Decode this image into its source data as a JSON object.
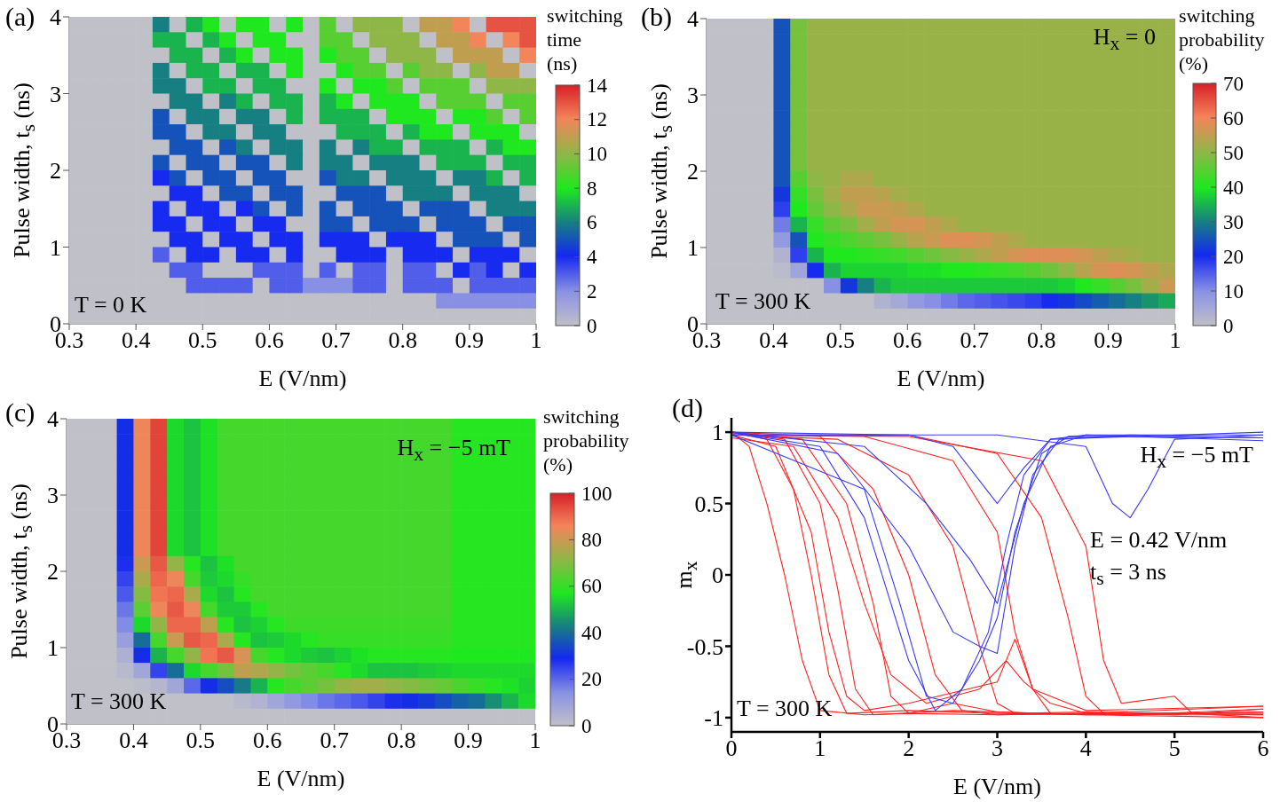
{
  "chart_data": [
    {
      "type": "heatmap",
      "title": "(a)",
      "xlabel": "E (V/nm)",
      "ylabel": "Pulse width, t$_{s}$ (ns)",
      "clabel": "switching time (ns)",
      "annotations": [
        "T = 0 K"
      ],
      "x": [
        0.3125,
        0.3375,
        0.3625,
        0.3875,
        0.4125,
        0.4375,
        0.4625,
        0.4875,
        0.5125,
        0.5375,
        0.5625,
        0.5875,
        0.6125,
        0.6375,
        0.6625,
        0.6875,
        0.7125,
        0.7375,
        0.7625,
        0.7875,
        0.8125,
        0.8375,
        0.8625,
        0.8875,
        0.9125,
        0.9375,
        0.9625,
        0.9875
      ],
      "xlim": [
        0.3,
        1
      ],
      "xticks": [
        0.3,
        0.4,
        0.5,
        0.6,
        0.7,
        0.8,
        0.9,
        1
      ],
      "ylim": [
        0,
        4
      ],
      "yticks": [
        0,
        1,
        2,
        3,
        4
      ],
      "clim": [
        0,
        14
      ],
      "cticks": [
        0,
        2,
        4,
        6,
        8,
        10,
        12,
        14
      ],
      "cells": [
        [
          0,
          0,
          0,
          0,
          0,
          6,
          0,
          7,
          8,
          0,
          8,
          8,
          0,
          8,
          0,
          9,
          0,
          10,
          10,
          10,
          0,
          11,
          11,
          12,
          0,
          13,
          13,
          13
        ],
        [
          0,
          0,
          0,
          0,
          0,
          7,
          7,
          0,
          7,
          8,
          0,
          8,
          8,
          0,
          0,
          9,
          9,
          0,
          10,
          10,
          10,
          0,
          11,
          11,
          12,
          0,
          12,
          13
        ],
        [
          0,
          0,
          0,
          0,
          0,
          0,
          7,
          7,
          0,
          7,
          8,
          0,
          8,
          8,
          0,
          8,
          9,
          9,
          0,
          10,
          10,
          10,
          0,
          11,
          11,
          11,
          0,
          12
        ],
        [
          0,
          0,
          0,
          0,
          0,
          6,
          0,
          7,
          7,
          0,
          7,
          7,
          0,
          8,
          0,
          0,
          8,
          9,
          9,
          0,
          9,
          10,
          10,
          0,
          10,
          11,
          11,
          0
        ],
        [
          0,
          0,
          0,
          0,
          0,
          6,
          6,
          0,
          7,
          7,
          0,
          7,
          7,
          0,
          0,
          8,
          0,
          8,
          8,
          9,
          0,
          9,
          9,
          9,
          0,
          10,
          10,
          10
        ],
        [
          0,
          0,
          0,
          0,
          0,
          0,
          6,
          6,
          0,
          6,
          7,
          0,
          7,
          7,
          0,
          7,
          8,
          0,
          8,
          8,
          8,
          0,
          9,
          9,
          9,
          0,
          9,
          9
        ],
        [
          0,
          0,
          0,
          0,
          0,
          5,
          0,
          6,
          6,
          0,
          6,
          6,
          0,
          7,
          0,
          7,
          7,
          7,
          0,
          8,
          8,
          8,
          0,
          8,
          8,
          9,
          0,
          9
        ],
        [
          0,
          0,
          0,
          0,
          0,
          5,
          5,
          0,
          6,
          6,
          0,
          6,
          6,
          0,
          0,
          0,
          7,
          7,
          7,
          0,
          7,
          8,
          8,
          0,
          8,
          8,
          8,
          0
        ],
        [
          0,
          0,
          0,
          0,
          0,
          0,
          5,
          5,
          0,
          5,
          6,
          0,
          6,
          6,
          0,
          6,
          0,
          6,
          7,
          7,
          0,
          7,
          7,
          7,
          0,
          7,
          8,
          8
        ],
        [
          0,
          0,
          0,
          0,
          0,
          5,
          0,
          5,
          5,
          0,
          5,
          5,
          0,
          6,
          0,
          6,
          6,
          0,
          6,
          6,
          6,
          0,
          7,
          7,
          7,
          0,
          7,
          7
        ],
        [
          0,
          0,
          0,
          0,
          0,
          4,
          5,
          0,
          5,
          5,
          0,
          5,
          5,
          0,
          0,
          5,
          6,
          6,
          0,
          6,
          6,
          6,
          0,
          6,
          6,
          7,
          0,
          7
        ],
        [
          0,
          0,
          0,
          0,
          0,
          0,
          4,
          4,
          0,
          5,
          5,
          0,
          5,
          5,
          0,
          0,
          5,
          5,
          5,
          0,
          6,
          6,
          6,
          0,
          6,
          6,
          6,
          0
        ],
        [
          0,
          0,
          0,
          0,
          0,
          4,
          0,
          4,
          4,
          0,
          4,
          5,
          0,
          5,
          0,
          5,
          0,
          5,
          5,
          5,
          0,
          5,
          5,
          5,
          0,
          6,
          6,
          6
        ],
        [
          0,
          0,
          0,
          0,
          0,
          4,
          4,
          0,
          4,
          4,
          0,
          4,
          4,
          0,
          0,
          5,
          5,
          0,
          5,
          5,
          5,
          0,
          5,
          5,
          5,
          0,
          5,
          5
        ],
        [
          0,
          0,
          0,
          0,
          0,
          0,
          4,
          4,
          0,
          4,
          4,
          0,
          4,
          4,
          0,
          4,
          4,
          4,
          0,
          4,
          4,
          4,
          0,
          5,
          5,
          5,
          0,
          5
        ],
        [
          0,
          0,
          0,
          0,
          0,
          3,
          0,
          4,
          4,
          0,
          4,
          4,
          0,
          4,
          0,
          0,
          4,
          4,
          4,
          0,
          4,
          4,
          4,
          0,
          4,
          4,
          4,
          0
        ],
        [
          0,
          0,
          0,
          0,
          0,
          0,
          3,
          3,
          0,
          0,
          0,
          3,
          3,
          3,
          0,
          3,
          0,
          3,
          3,
          0,
          3,
          3,
          0,
          4,
          3,
          4,
          0,
          4
        ],
        [
          0,
          0,
          0,
          0,
          0,
          0,
          0,
          3,
          3,
          3,
          3,
          0,
          3,
          3,
          2,
          2,
          2,
          3,
          3,
          0,
          3,
          3,
          3,
          0,
          3,
          3,
          3,
          3
        ],
        [
          0,
          0,
          0,
          0,
          0,
          0,
          0,
          0,
          0,
          0,
          0,
          0,
          0,
          0,
          0,
          0,
          0,
          0,
          0,
          0,
          0,
          0,
          2,
          2,
          2,
          2,
          2,
          2
        ],
        [
          0,
          0,
          0,
          0,
          0,
          0,
          0,
          0,
          0,
          0,
          0,
          0,
          0,
          0,
          0,
          0,
          0,
          0,
          0,
          0,
          0,
          0,
          0,
          0,
          0,
          0,
          0,
          0
        ]
      ]
    },
    {
      "type": "heatmap",
      "title": "(b)",
      "xlabel": "E (V/nm)",
      "ylabel": "Pulse width, t$_{s}$ (ns)",
      "clabel": "switching probability (%)",
      "annotations": [
        "H$_{x}$ = 0",
        "T = 300 K"
      ],
      "x": [
        0.3125,
        0.3375,
        0.3625,
        0.3875,
        0.4125,
        0.4375,
        0.4625,
        0.4875,
        0.5125,
        0.5375,
        0.5625,
        0.5875,
        0.6125,
        0.6375,
        0.6625,
        0.6875,
        0.7125,
        0.7375,
        0.7625,
        0.7875,
        0.8125,
        0.8375,
        0.8625,
        0.8875,
        0.9125,
        0.9375,
        0.9625,
        0.9875
      ],
      "xlim": [
        0.3,
        1
      ],
      "xticks": [
        0.3,
        0.4,
        0.5,
        0.6,
        0.7,
        0.8,
        0.9,
        1
      ],
      "ylim": [
        0,
        4
      ],
      "yticks": [
        0,
        1,
        2,
        3,
        4
      ],
      "clim": [
        0,
        70
      ],
      "cticks": [
        0,
        10,
        20,
        30,
        40,
        50,
        60,
        70
      ],
      "cells": [
        [
          0,
          0,
          0,
          0,
          25,
          48,
          51,
          51,
          51,
          51,
          51,
          51,
          51,
          51,
          51,
          51,
          51,
          51,
          51,
          51,
          51,
          51,
          51,
          51,
          51,
          51,
          51,
          51
        ],
        [
          0,
          0,
          0,
          0,
          25,
          48,
          51,
          51,
          51,
          51,
          51,
          51,
          51,
          51,
          51,
          51,
          51,
          51,
          51,
          51,
          51,
          51,
          51,
          51,
          51,
          51,
          51,
          51
        ],
        [
          0,
          0,
          0,
          0,
          25,
          48,
          51,
          51,
          51,
          51,
          51,
          51,
          51,
          51,
          51,
          51,
          51,
          51,
          51,
          51,
          51,
          51,
          51,
          51,
          51,
          51,
          51,
          51
        ],
        [
          0,
          0,
          0,
          0,
          25,
          48,
          51,
          51,
          51,
          51,
          51,
          51,
          51,
          51,
          51,
          51,
          51,
          51,
          51,
          51,
          51,
          51,
          51,
          51,
          51,
          51,
          51,
          51
        ],
        [
          0,
          0,
          0,
          0,
          25,
          48,
          51,
          51,
          51,
          51,
          51,
          51,
          51,
          51,
          51,
          51,
          51,
          51,
          51,
          51,
          51,
          51,
          51,
          51,
          51,
          51,
          51,
          51
        ],
        [
          0,
          0,
          0,
          0,
          25,
          48,
          51,
          51,
          51,
          51,
          51,
          51,
          51,
          51,
          51,
          51,
          51,
          51,
          51,
          51,
          51,
          51,
          51,
          51,
          51,
          51,
          51,
          51
        ],
        [
          0,
          0,
          0,
          0,
          25,
          48,
          51,
          51,
          51,
          51,
          51,
          51,
          51,
          51,
          51,
          51,
          51,
          51,
          51,
          51,
          51,
          51,
          51,
          51,
          51,
          51,
          51,
          51
        ],
        [
          0,
          0,
          0,
          0,
          25,
          48,
          51,
          51,
          51,
          51,
          51,
          51,
          51,
          51,
          51,
          51,
          51,
          51,
          51,
          51,
          51,
          51,
          51,
          51,
          51,
          51,
          51,
          51
        ],
        [
          0,
          0,
          0,
          0,
          25,
          48,
          51,
          51,
          51,
          51,
          51,
          51,
          51,
          51,
          51,
          51,
          51,
          51,
          51,
          51,
          51,
          51,
          51,
          51,
          51,
          51,
          51,
          51
        ],
        [
          0,
          0,
          0,
          0,
          25,
          48,
          51,
          51,
          51,
          51,
          51,
          51,
          51,
          51,
          51,
          51,
          51,
          51,
          51,
          51,
          51,
          51,
          51,
          51,
          51,
          51,
          51,
          51
        ],
        [
          0,
          0,
          0,
          0,
          25,
          45,
          50,
          51,
          53,
          53,
          51,
          51,
          51,
          51,
          51,
          51,
          51,
          51,
          51,
          51,
          51,
          51,
          51,
          51,
          51,
          51,
          51,
          51
        ],
        [
          0,
          0,
          0,
          0,
          22,
          42,
          48,
          52,
          55,
          55,
          54,
          52,
          51,
          51,
          51,
          51,
          51,
          51,
          51,
          51,
          51,
          51,
          51,
          51,
          51,
          51,
          51,
          51
        ],
        [
          0,
          0,
          0,
          0,
          18,
          40,
          46,
          50,
          53,
          56,
          56,
          55,
          53,
          51,
          51,
          51,
          51,
          51,
          51,
          51,
          51,
          51,
          51,
          51,
          51,
          51,
          51,
          51
        ],
        [
          0,
          0,
          0,
          0,
          12,
          35,
          42,
          46,
          48,
          52,
          55,
          57,
          57,
          55,
          53,
          51,
          51,
          51,
          51,
          51,
          51,
          51,
          51,
          51,
          51,
          51,
          51,
          51
        ],
        [
          0,
          0,
          0,
          0,
          8,
          25,
          40,
          42,
          44,
          46,
          48,
          51,
          54,
          56,
          58,
          58,
          57,
          55,
          53,
          51,
          51,
          51,
          51,
          51,
          51,
          51,
          51,
          51
        ],
        [
          0,
          0,
          0,
          0,
          3,
          18,
          35,
          40,
          40,
          41,
          42,
          43,
          45,
          47,
          49,
          51,
          53,
          55,
          57,
          58,
          58,
          58,
          57,
          55,
          53,
          52,
          51,
          51
        ],
        [
          0,
          0,
          0,
          0,
          1,
          6,
          20,
          35,
          38,
          38,
          38,
          38,
          39,
          39,
          40,
          40,
          41,
          42,
          43,
          45,
          47,
          50,
          54,
          57,
          58,
          57,
          55,
          53
        ],
        [
          0,
          0,
          0,
          0,
          0,
          0,
          0,
          10,
          22,
          30,
          35,
          37,
          37,
          37,
          37,
          37,
          37,
          37,
          37,
          37,
          37,
          38,
          40,
          42,
          45,
          48,
          52,
          56
        ],
        [
          0,
          0,
          0,
          0,
          0,
          0,
          0,
          0,
          0,
          0,
          3,
          5,
          8,
          10,
          12,
          14,
          15,
          16,
          17,
          18,
          20,
          22,
          24,
          26,
          28,
          30,
          32,
          34
        ],
        [
          0,
          0,
          0,
          0,
          0,
          0,
          0,
          0,
          0,
          0,
          0,
          0,
          0,
          0,
          0,
          0,
          0,
          0,
          0,
          0,
          0,
          0,
          0,
          0,
          0,
          0,
          0,
          0
        ]
      ]
    },
    {
      "type": "heatmap",
      "title": "(c)",
      "xlabel": "E (V/nm)",
      "ylabel": "Pulse width, t$_{s}$ (ns)",
      "clabel": "switching probability (%)",
      "annotations": [
        "H$_{x}$ = −5 mT",
        "T = 300 K"
      ],
      "x": [
        0.3125,
        0.3375,
        0.3625,
        0.3875,
        0.4125,
        0.4375,
        0.4625,
        0.4875,
        0.5125,
        0.5375,
        0.5625,
        0.5875,
        0.6125,
        0.6375,
        0.6625,
        0.6875,
        0.7125,
        0.7375,
        0.7625,
        0.7875,
        0.8125,
        0.8375,
        0.8625,
        0.8875,
        0.9125,
        0.9375,
        0.9625,
        0.9875
      ],
      "xlim": [
        0.3,
        1
      ],
      "xticks": [
        0.3,
        0.4,
        0.5,
        0.6,
        0.7,
        0.8,
        0.9,
        1
      ],
      "ylim": [
        0,
        4
      ],
      "yticks": [
        0,
        1,
        2,
        3,
        4
      ],
      "clim": [
        0,
        100
      ],
      "cticks": [
        0,
        20,
        40,
        60,
        80,
        100
      ],
      "cells": [
        [
          0,
          0,
          0,
          30,
          85,
          95,
          55,
          52,
          56,
          62,
          62,
          62,
          62,
          62,
          62,
          62,
          62,
          62,
          62,
          62,
          62,
          62,
          62,
          58,
          58,
          58,
          58,
          58
        ],
        [
          0,
          0,
          0,
          30,
          85,
          95,
          55,
          52,
          56,
          62,
          62,
          62,
          62,
          62,
          62,
          62,
          62,
          62,
          62,
          62,
          62,
          62,
          62,
          58,
          58,
          58,
          58,
          58
        ],
        [
          0,
          0,
          0,
          30,
          85,
          95,
          55,
          52,
          56,
          62,
          62,
          62,
          62,
          62,
          62,
          62,
          62,
          62,
          62,
          62,
          62,
          62,
          62,
          58,
          58,
          58,
          58,
          58
        ],
        [
          0,
          0,
          0,
          30,
          85,
          95,
          55,
          52,
          56,
          62,
          62,
          62,
          62,
          62,
          62,
          62,
          62,
          62,
          62,
          62,
          62,
          62,
          62,
          58,
          58,
          58,
          58,
          58
        ],
        [
          0,
          0,
          0,
          30,
          85,
          95,
          55,
          52,
          56,
          62,
          62,
          62,
          62,
          62,
          62,
          62,
          62,
          62,
          62,
          62,
          62,
          62,
          62,
          58,
          58,
          58,
          58,
          58
        ],
        [
          0,
          0,
          0,
          30,
          85,
          95,
          55,
          52,
          56,
          62,
          62,
          62,
          62,
          62,
          62,
          62,
          62,
          62,
          62,
          62,
          62,
          62,
          62,
          58,
          58,
          58,
          58,
          58
        ],
        [
          0,
          0,
          0,
          30,
          85,
          95,
          55,
          52,
          56,
          62,
          62,
          62,
          62,
          62,
          62,
          62,
          62,
          62,
          62,
          62,
          62,
          62,
          62,
          58,
          58,
          58,
          58,
          58
        ],
        [
          0,
          0,
          0,
          30,
          85,
          95,
          55,
          52,
          56,
          62,
          62,
          62,
          62,
          62,
          62,
          62,
          62,
          62,
          62,
          62,
          62,
          62,
          62,
          58,
          58,
          58,
          58,
          58
        ],
        [
          0,
          0,
          0,
          30,
          85,
          95,
          55,
          52,
          56,
          62,
          62,
          62,
          62,
          62,
          62,
          62,
          62,
          62,
          62,
          62,
          62,
          62,
          62,
          58,
          58,
          58,
          58,
          58
        ],
        [
          0,
          0,
          0,
          28,
          80,
          92,
          72,
          58,
          52,
          56,
          62,
          62,
          62,
          62,
          62,
          62,
          62,
          62,
          62,
          62,
          62,
          62,
          62,
          58,
          58,
          58,
          58,
          58
        ],
        [
          0,
          0,
          0,
          25,
          75,
          90,
          85,
          62,
          53,
          55,
          60,
          62,
          62,
          62,
          62,
          62,
          62,
          62,
          62,
          62,
          62,
          62,
          62,
          58,
          58,
          58,
          58,
          58
        ],
        [
          0,
          0,
          0,
          22,
          70,
          88,
          90,
          75,
          55,
          52,
          58,
          62,
          62,
          62,
          62,
          62,
          62,
          62,
          62,
          62,
          62,
          62,
          62,
          58,
          58,
          58,
          58,
          58
        ],
        [
          0,
          0,
          0,
          18,
          65,
          85,
          92,
          85,
          62,
          53,
          53,
          58,
          62,
          62,
          62,
          62,
          62,
          62,
          62,
          62,
          62,
          62,
          62,
          58,
          58,
          58,
          58,
          58
        ],
        [
          0,
          0,
          0,
          15,
          55,
          72,
          90,
          90,
          78,
          58,
          52,
          54,
          58,
          61,
          61,
          61,
          61,
          61,
          61,
          61,
          61,
          61,
          61,
          58,
          58,
          58,
          58,
          58
        ],
        [
          0,
          0,
          0,
          10,
          40,
          62,
          80,
          92,
          90,
          75,
          58,
          52,
          53,
          55,
          58,
          60,
          60,
          60,
          60,
          60,
          60,
          60,
          60,
          58,
          58,
          58,
          58,
          58
        ],
        [
          0,
          0,
          0,
          5,
          30,
          50,
          62,
          72,
          88,
          92,
          82,
          62,
          58,
          55,
          53,
          52,
          54,
          56,
          58,
          58,
          58,
          58,
          58,
          57,
          57,
          57,
          57,
          57
        ],
        [
          0,
          0,
          0,
          2,
          8,
          25,
          40,
          55,
          62,
          68,
          78,
          76,
          72,
          68,
          65,
          62,
          58,
          55,
          52,
          52,
          52,
          53,
          54,
          55,
          55,
          55,
          55,
          55
        ],
        [
          0,
          0,
          0,
          0,
          1,
          3,
          8,
          20,
          30,
          35,
          42,
          50,
          58,
          62,
          65,
          68,
          72,
          74,
          74,
          72,
          70,
          68,
          66,
          63,
          60,
          58,
          56,
          54
        ],
        [
          0,
          0,
          0,
          0,
          0,
          0,
          0,
          0,
          0,
          0,
          2,
          4,
          8,
          12,
          15,
          18,
          20,
          22,
          25,
          28,
          30,
          32,
          35,
          38,
          40,
          45,
          50,
          55
        ],
        [
          0,
          0,
          0,
          0,
          0,
          0,
          0,
          0,
          0,
          0,
          0,
          0,
          0,
          0,
          0,
          0,
          0,
          0,
          0,
          0,
          0,
          0,
          0,
          0,
          0,
          0,
          0,
          0
        ]
      ]
    },
    {
      "type": "line",
      "title": "(d)",
      "xlabel": "E (V/nm)",
      "ylabel": "m$_{x}$",
      "annotations": [
        "H$_{x}$ = −5 mT",
        "E = 0.42 V/nm",
        "t$_{s}$ = 3 ns",
        "T = 300 K"
      ],
      "xlim": [
        0,
        6
      ],
      "xticks": [
        0,
        1,
        2,
        3,
        4,
        5,
        6
      ],
      "ylim": [
        -1.1,
        1.1
      ],
      "yticks": [
        -1,
        -0.5,
        0,
        0.5,
        1
      ],
      "series": [
        {
          "color": "#ff2020",
          "x": [
            0,
            0.2,
            0.4,
            0.6,
            0.8,
            1,
            1.5,
            2,
            3,
            4,
            5,
            6
          ],
          "values": [
            1,
            0.9,
            0.5,
            0,
            -0.6,
            -0.95,
            -0.98,
            -0.97,
            -0.98,
            -0.97,
            -0.98,
            -0.98
          ]
        },
        {
          "color": "#ff2020",
          "x": [
            0,
            0.4,
            0.7,
            0.9,
            1.1,
            1.3,
            2,
            3,
            4,
            5,
            6
          ],
          "values": [
            1,
            0.95,
            0.6,
            0,
            -0.7,
            -0.97,
            -0.95,
            -0.97,
            -0.98,
            -0.97,
            -0.96
          ]
        },
        {
          "color": "#ff2020",
          "x": [
            0,
            0.6,
            1,
            1.2,
            1.4,
            1.6,
            2.5,
            3.5,
            4.5,
            6
          ],
          "values": [
            1,
            0.95,
            0.5,
            -0.1,
            -0.8,
            -0.98,
            -0.95,
            -0.97,
            -0.98,
            -0.94
          ]
        },
        {
          "color": "#ff2020",
          "x": [
            0,
            0.8,
            1.3,
            1.6,
            1.8,
            2,
            2.5,
            3,
            4,
            6
          ],
          "values": [
            1,
            0.95,
            0.5,
            -0.2,
            -0.85,
            -0.97,
            -0.9,
            -0.96,
            -0.98,
            -1
          ]
        },
        {
          "color": "#ff2020",
          "x": [
            0,
            1,
            1.6,
            2,
            2.3,
            2.6,
            3,
            4,
            6
          ],
          "values": [
            1,
            0.97,
            0.6,
            0,
            -0.7,
            -0.95,
            -0.98,
            -0.97,
            -0.92
          ]
        },
        {
          "color": "#ff2020",
          "x": [
            0,
            1.2,
            2,
            2.5,
            2.8,
            3,
            3.2,
            4,
            6
          ],
          "values": [
            0.98,
            0.95,
            0.7,
            0.2,
            -0.5,
            -0.9,
            -0.97,
            -0.96,
            -0.98
          ]
        },
        {
          "color": "#ff2020",
          "x": [
            0,
            1.5,
            2.5,
            3,
            3.2,
            3.4,
            3.6,
            4.5,
            6
          ],
          "values": [
            0.98,
            0.97,
            0.8,
            0.3,
            -0.4,
            -0.8,
            -0.97,
            -0.98,
            -0.96
          ]
        },
        {
          "color": "#ff2020",
          "x": [
            0,
            2,
            3,
            3.5,
            3.8,
            4,
            4.2,
            5,
            6
          ],
          "values": [
            0.98,
            0.98,
            0.85,
            0.4,
            -0.3,
            -0.85,
            -0.97,
            -0.98,
            -0.94
          ]
        },
        {
          "color": "#ff2020",
          "x": [
            0,
            2,
            3.5,
            4,
            4.2,
            4.4,
            5,
            5.2,
            6
          ],
          "values": [
            0.98,
            0.97,
            0.8,
            0.2,
            -0.6,
            -0.9,
            -0.85,
            -0.97,
            -1
          ]
        },
        {
          "color": "#ff2020",
          "x": [
            0,
            0.5,
            0.9,
            1.1,
            1.3,
            1.5,
            2,
            3,
            3.2,
            3.4,
            4,
            6
          ],
          "values": [
            0.98,
            0.9,
            0.3,
            -0.4,
            -0.85,
            -0.95,
            -0.9,
            -0.75,
            -0.45,
            -0.8,
            -0.95,
            -0.92
          ]
        },
        {
          "color": "#ff2020",
          "x": [
            0,
            0.7,
            1.2,
            1.5,
            1.8,
            2.2,
            2.8,
            3.1,
            3.3,
            3.6,
            4,
            6
          ],
          "values": [
            0.96,
            0.9,
            0.4,
            -0.2,
            -0.7,
            -0.9,
            -0.8,
            -0.6,
            -0.75,
            -0.9,
            -0.97,
            -0.97
          ]
        },
        {
          "color": "#3a3af0",
          "x": [
            0,
            1,
            1.5,
            2,
            2.3,
            2.6,
            2.9,
            3.1,
            3.3,
            3.6,
            4,
            6
          ],
          "values": [
            1,
            0.9,
            0.4,
            -0.6,
            -0.95,
            -0.8,
            -0.4,
            0.2,
            0.7,
            0.95,
            0.98,
            0.98
          ]
        },
        {
          "color": "#3a3af0",
          "x": [
            0,
            1.2,
            2,
            2.5,
            2.8,
            3,
            3.2,
            3.4,
            3.7,
            4.5,
            6
          ],
          "values": [
            1,
            0.85,
            0.2,
            -0.4,
            -0.5,
            -0.55,
            0.2,
            0.7,
            0.95,
            0.98,
            0.96
          ]
        },
        {
          "color": "#3a3af0",
          "x": [
            0,
            1.5,
            2.2,
            2.7,
            3,
            3.3,
            3.6,
            4,
            6
          ],
          "values": [
            1,
            0.9,
            0.5,
            0.1,
            -0.2,
            0.5,
            0.9,
            0.98,
            0.94
          ]
        },
        {
          "color": "#3a3af0",
          "x": [
            0,
            2,
            2.5,
            3,
            3.3,
            3.6,
            6
          ],
          "values": [
            1,
            0.98,
            0.9,
            0.5,
            0.75,
            0.95,
            1
          ]
        },
        {
          "color": "#3a3af0",
          "x": [
            0,
            3,
            4,
            4.3,
            4.5,
            4.7,
            5,
            6
          ],
          "values": [
            0.98,
            0.98,
            0.9,
            0.5,
            0.4,
            0.6,
            0.95,
            0.98
          ]
        },
        {
          "color": "#3a3af0",
          "x": [
            0,
            1.5,
            1.9,
            2.2,
            2.5,
            2.8,
            3,
            3.2,
            3.5,
            3.8,
            6
          ],
          "values": [
            0.98,
            0.6,
            -0.2,
            -0.85,
            -0.9,
            -0.6,
            -0.3,
            0.3,
            0.85,
            0.97,
            0.96
          ]
        }
      ]
    }
  ]
}
